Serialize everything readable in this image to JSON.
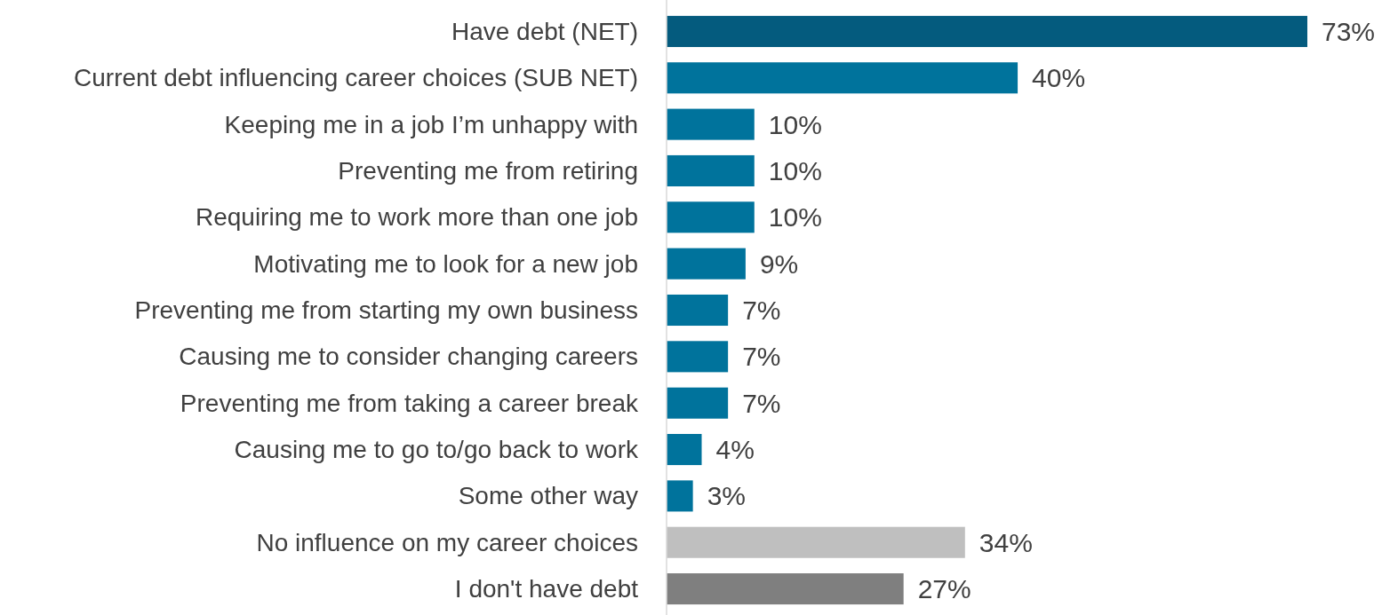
{
  "chart_data": {
    "type": "bar",
    "orientation": "horizontal",
    "categories": [
      "Have debt (NET)",
      "Current debt influencing career choices (SUB NET)",
      "Keeping me in a job I’m unhappy with",
      "Preventing me from retiring",
      "Requiring me to work more than one job",
      "Motivating me to look for a new job",
      "Preventing me from starting my own business",
      "Causing me to consider changing careers",
      "Preventing me from taking a career break",
      "Causing me to go to/go back to work",
      "Some other way",
      "No influence on my career choices",
      "I don't have debt"
    ],
    "values": [
      73,
      40,
      10,
      10,
      10,
      9,
      7,
      7,
      7,
      4,
      3,
      34,
      27
    ],
    "colors": [
      "#045b7e",
      "#00739c",
      "#00739c",
      "#00739c",
      "#00739c",
      "#00739c",
      "#00739c",
      "#00739c",
      "#00739c",
      "#00739c",
      "#00739c",
      "#bfbfbf",
      "#7f7f7f"
    ],
    "value_labels": [
      "73%",
      "40%",
      "10%",
      "10%",
      "10%",
      "9%",
      "7%",
      "7%",
      "7%",
      "4%",
      "3%",
      "34%",
      "27%"
    ]
  }
}
